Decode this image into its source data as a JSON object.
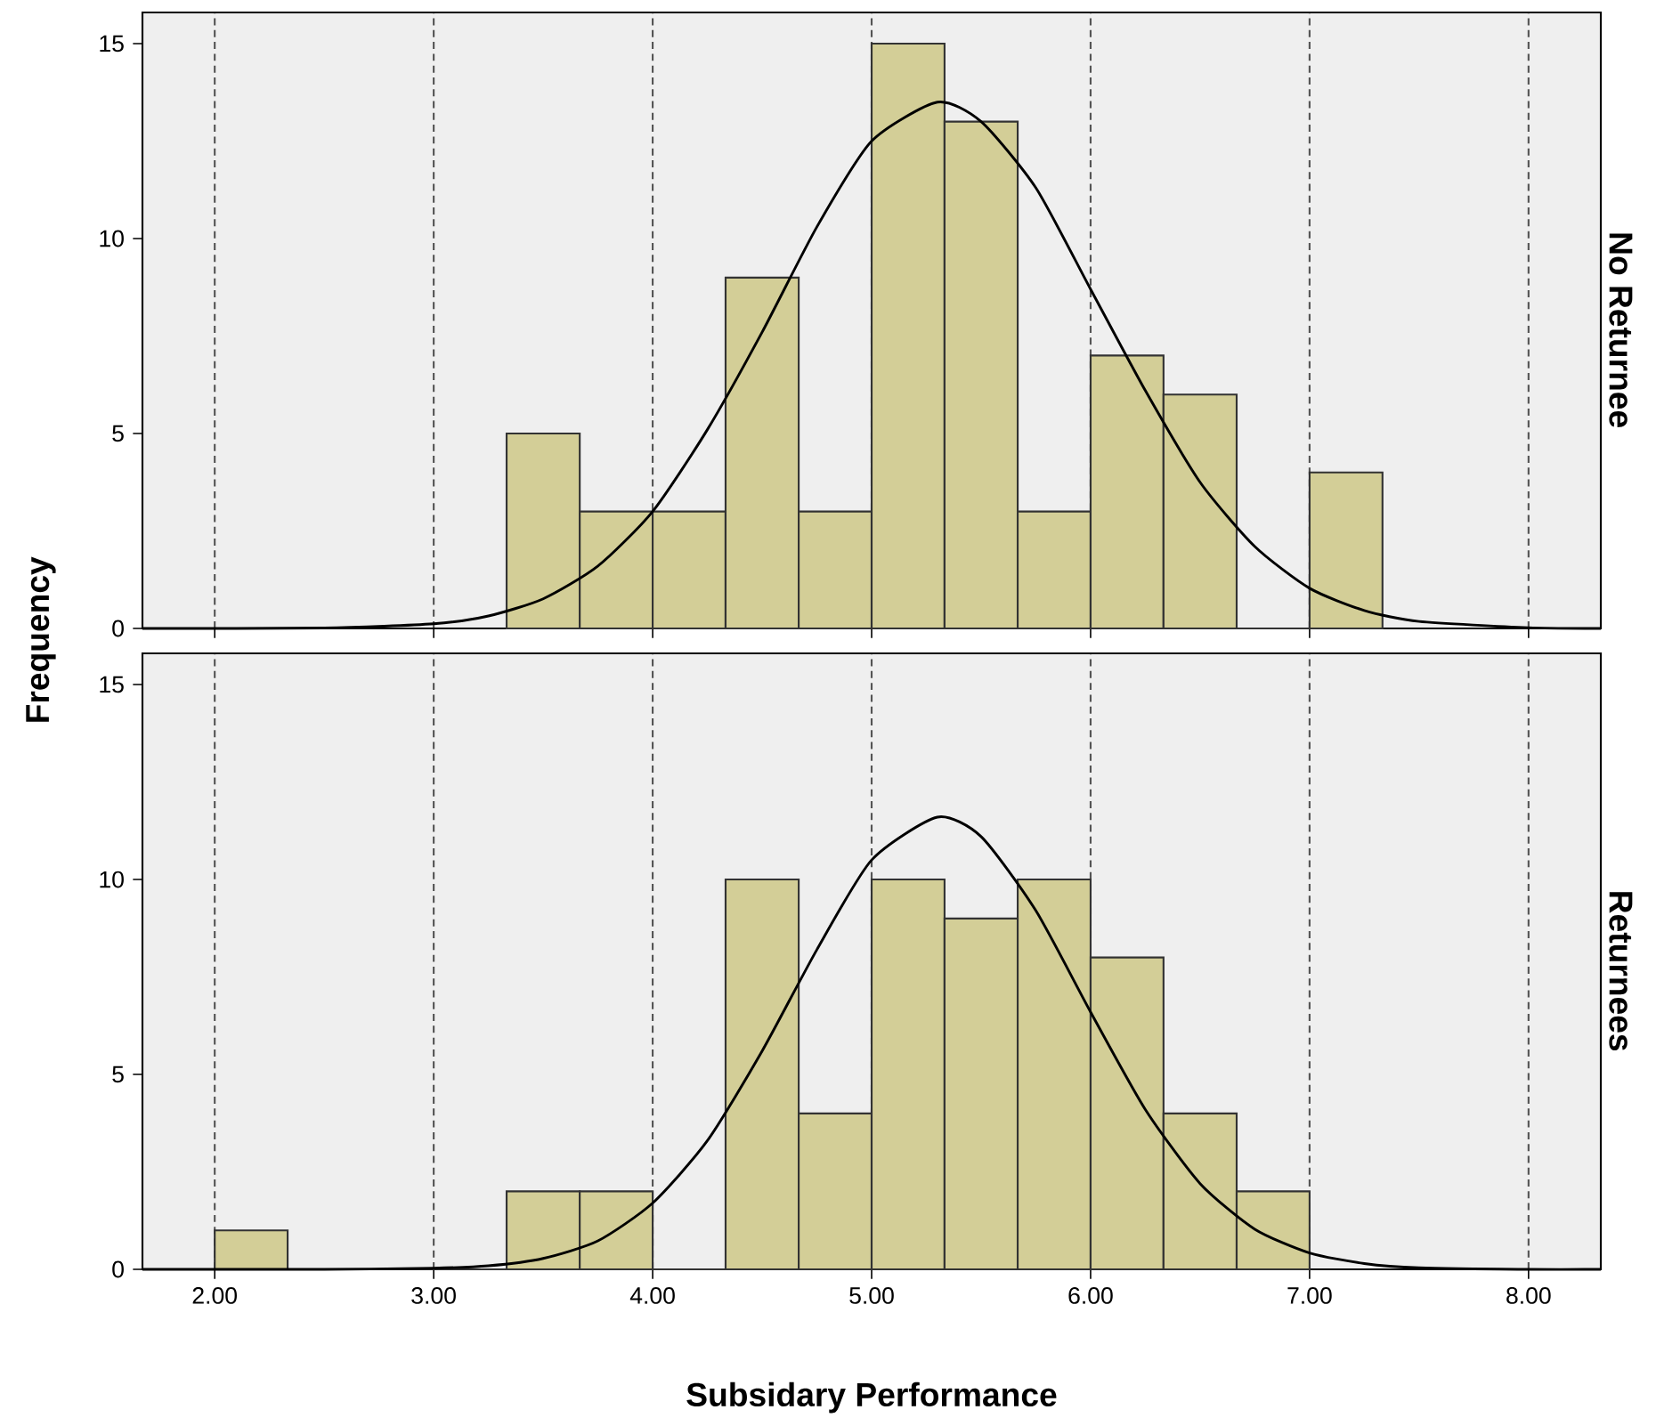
{
  "chart_data": [
    {
      "type": "histogram",
      "title": "No Returnee",
      "ylabel": "Frequency",
      "color": "#d3ce97",
      "bins": [
        3.333,
        3.667,
        4.0,
        4.333,
        4.667,
        5.0,
        5.333,
        5.667,
        6.0,
        6.333,
        6.667,
        7.0,
        7.333
      ],
      "values": [
        5,
        3,
        3,
        9,
        3,
        15,
        13,
        3,
        7,
        6,
        0,
        4
      ],
      "series": [
        {
          "type": "line",
          "color": "#000000",
          "x": [
            1.67,
            2.5,
            3.0,
            3.25,
            3.5,
            3.75,
            4.0,
            4.25,
            4.5,
            4.75,
            5.0,
            5.3,
            5.5,
            5.75,
            6.0,
            6.25,
            6.5,
            6.75,
            7.0,
            7.25,
            7.5,
            8.0,
            8.33
          ],
          "values": [
            0,
            0.01,
            0.12,
            0.32,
            0.76,
            1.6,
            3.0,
            5.1,
            7.6,
            10.3,
            12.5,
            13.5,
            13.0,
            11.3,
            8.7,
            6.1,
            3.75,
            2.1,
            1.03,
            0.46,
            0.18,
            0.02,
            0
          ]
        }
      ],
      "xlim": [
        1.67,
        8.33
      ],
      "ylim": [
        0,
        15.8
      ],
      "xticks": [
        2,
        3,
        4,
        5,
        6,
        7,
        8
      ],
      "yticks": [
        0,
        5,
        10,
        15
      ],
      "grid": "x",
      "tick_labels": "y"
    },
    {
      "type": "histogram",
      "title": "Returnees",
      "xlabel": "Subsidary Performance",
      "color": "#d3ce97",
      "bins": [
        2.0,
        2.333,
        2.667,
        3.0,
        3.333,
        3.667,
        4.0,
        4.333,
        4.667,
        5.0,
        5.333,
        5.667,
        6.0,
        6.333,
        6.667,
        7.0
      ],
      "values": [
        1,
        0,
        0,
        0,
        2,
        2,
        0,
        10,
        4,
        10,
        9,
        10,
        8,
        4,
        2
      ],
      "series": [
        {
          "type": "line",
          "color": "#000000",
          "x": [
            1.67,
            2.5,
            3.0,
            3.25,
            3.5,
            3.75,
            4.0,
            4.25,
            4.5,
            4.75,
            5.0,
            5.3,
            5.5,
            5.75,
            6.0,
            6.25,
            6.5,
            6.75,
            7.0,
            7.25,
            7.5,
            8.0,
            8.33
          ],
          "values": [
            0,
            0,
            0.03,
            0.09,
            0.28,
            0.73,
            1.7,
            3.3,
            5.6,
            8.2,
            10.5,
            11.6,
            11.1,
            9.2,
            6.6,
            4.1,
            2.2,
            1.03,
            0.42,
            0.15,
            0.04,
            0,
            0
          ]
        }
      ],
      "xlim": [
        1.67,
        8.33
      ],
      "ylim": [
        0,
        15.8
      ],
      "xticks": [
        {
          "value": 2,
          "label": "2.00"
        },
        {
          "value": 3,
          "label": "3.00"
        },
        {
          "value": 4,
          "label": "4.00"
        },
        {
          "value": 5,
          "label": "5.00"
        },
        {
          "value": 6,
          "label": "6.00"
        },
        {
          "value": 7,
          "label": "7.00"
        },
        {
          "value": 8,
          "label": "8.00"
        }
      ],
      "yticks": [
        0,
        5,
        10,
        15
      ],
      "grid": "x"
    }
  ]
}
